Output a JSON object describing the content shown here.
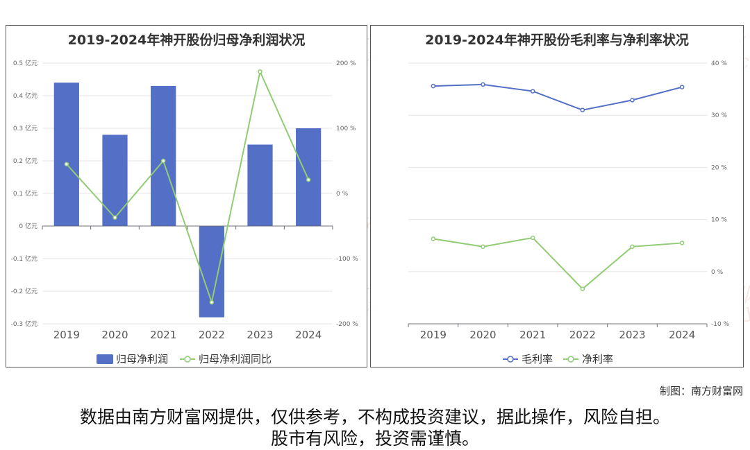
{
  "watermark": {
    "cn": "南方财富网",
    "en": "outhmoney.com"
  },
  "credit": "制图：南方财富网",
  "disclaimer": {
    "line1": "数据由南方财富网提供，仅供参考，不构成投资建议，据此操作，风险自担。",
    "line2": "股市有风险，投资需谨慎。"
  },
  "colors": {
    "bar": "#5470c6",
    "green": "#91cc75",
    "blue_line": "#5470c6"
  },
  "chart_data": [
    {
      "type": "bar",
      "title": "2019-2024年神开股份归母净利润状况",
      "categories": [
        "2019",
        "2020",
        "2021",
        "2022",
        "2023",
        "2024"
      ],
      "series": [
        {
          "name": "归母净利润",
          "type": "bar",
          "axis": "left",
          "values": [
            0.44,
            0.28,
            0.43,
            -0.28,
            0.25,
            0.3
          ]
        },
        {
          "name": "归母净利润同比",
          "type": "line",
          "axis": "right",
          "values": [
            45,
            -37,
            50,
            -167,
            187,
            21
          ]
        }
      ],
      "left_axis": {
        "ticks": [
          0.5,
          0.4,
          0.3,
          0.2,
          0.1,
          0,
          -0.1,
          -0.2,
          -0.3
        ],
        "tick_labels": [
          "0.5 亿元",
          "0.4 亿元",
          "0.3 亿元",
          "0.2 亿元",
          "0.1 亿元",
          "0 亿元",
          "-0.1 亿元",
          "-0.2 亿元",
          "-0.3 亿元"
        ],
        "ylim": [
          -0.3,
          0.5
        ]
      },
      "right_axis": {
        "ticks": [
          200,
          100,
          0,
          -100,
          -200
        ],
        "tick_labels": [
          "200 %",
          "100 %",
          "0 %",
          "-100 %",
          "-200 %"
        ],
        "ylim": [
          -200,
          200
        ]
      },
      "legend_position": "bottom",
      "grid": true
    },
    {
      "type": "line",
      "title": "2019-2024年神开股份毛利率与净利率状况",
      "categories": [
        "2019",
        "2020",
        "2021",
        "2022",
        "2023",
        "2024"
      ],
      "series": [
        {
          "name": "毛利率",
          "values": [
            35.6,
            35.9,
            34.6,
            31.0,
            32.9,
            35.4
          ]
        },
        {
          "name": "净利率",
          "values": [
            6.3,
            4.8,
            6.5,
            -3.3,
            4.8,
            5.5
          ]
        }
      ],
      "right_axis": {
        "ticks": [
          40,
          30,
          20,
          10,
          0,
          -10
        ],
        "tick_labels": [
          "40 %",
          "30 %",
          "20 %",
          "10 %",
          "0 %",
          "-10 %"
        ],
        "ylim": [
          -10,
          40
        ]
      },
      "legend_position": "bottom",
      "grid": true
    }
  ]
}
